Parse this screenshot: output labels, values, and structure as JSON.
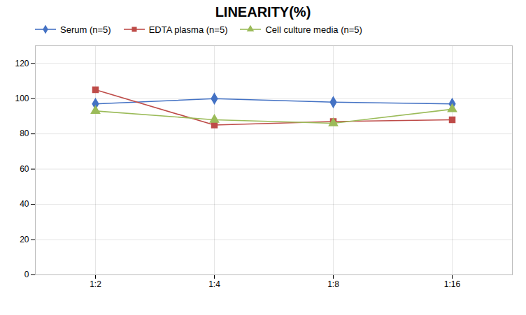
{
  "chart_data": {
    "type": "line",
    "title": "LINEARITY(%)",
    "categories": [
      "1:2",
      "1:4",
      "1:8",
      "1:16"
    ],
    "series": [
      {
        "name": "Serum (n=5)",
        "color": "#4472C4",
        "marker": "diamond",
        "values": [
          97,
          100,
          98,
          97
        ]
      },
      {
        "name": "EDTA plasma (n=5)",
        "color": "#BE4B48",
        "marker": "square",
        "values": [
          105,
          85,
          87,
          88
        ]
      },
      {
        "name": "Cell culture media (n=5)",
        "color": "#9BBB59",
        "marker": "triangle",
        "values": [
          93,
          88,
          86,
          94
        ]
      }
    ],
    "ylim": [
      0,
      130
    ],
    "yticks": [
      0,
      20,
      40,
      60,
      80,
      100,
      120
    ],
    "grid": true,
    "legend": "upper left"
  }
}
